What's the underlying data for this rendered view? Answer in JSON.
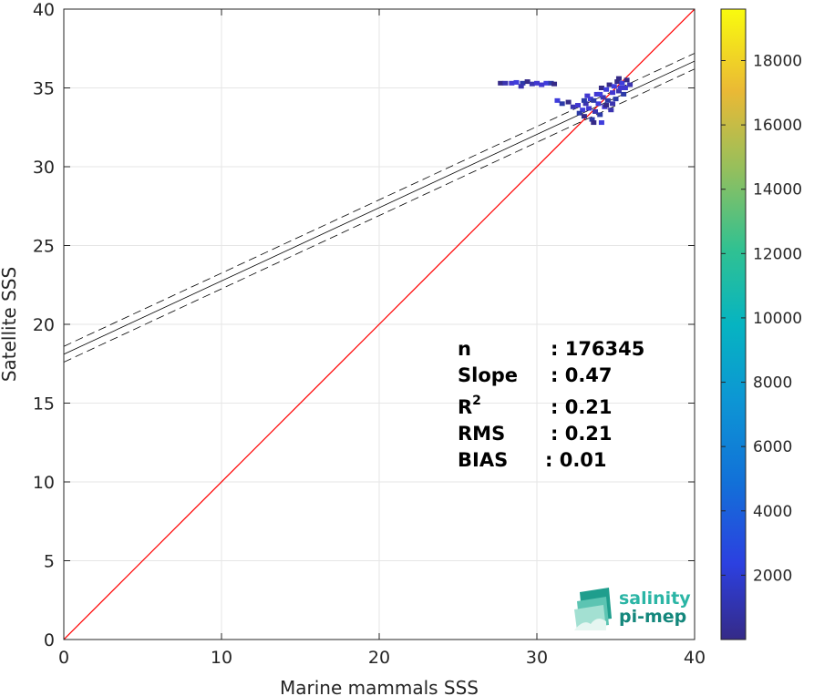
{
  "chart_data": {
    "type": "scatter",
    "subtype": "density-scatter",
    "xlabel": "Marine mammals SSS",
    "ylabel": "Satellite SSS",
    "xlim": [
      0,
      40
    ],
    "ylim": [
      0,
      40
    ],
    "xticks": [
      "0",
      "10",
      "20",
      "30",
      "40"
    ],
    "yticks": [
      "0",
      "5",
      "10",
      "15",
      "20",
      "25",
      "30",
      "35",
      "40"
    ],
    "grid": true,
    "colorbar": {
      "range": [
        0,
        19600
      ],
      "ticks": [
        "2000",
        "4000",
        "6000",
        "8000",
        "10000",
        "12000",
        "14000",
        "16000",
        "18000"
      ],
      "colormap": "parula"
    },
    "reference_line": {
      "name": "1:1",
      "x": [
        0,
        40
      ],
      "y": [
        0,
        40
      ],
      "color": "#ff0000"
    },
    "fit_line": {
      "intercept": 18.1,
      "slope": 0.465,
      "x": [
        0,
        40
      ],
      "color": "#000000"
    },
    "fit_bounds": {
      "offset": 0.5,
      "style": "dashed",
      "color": "#000000"
    },
    "density_points": [
      {
        "x": 27.7,
        "y": 35.3
      },
      {
        "x": 28.0,
        "y": 35.3
      },
      {
        "x": 28.4,
        "y": 35.3
      },
      {
        "x": 28.7,
        "y": 35.35
      },
      {
        "x": 29.1,
        "y": 35.3
      },
      {
        "x": 29.4,
        "y": 35.4
      },
      {
        "x": 29.7,
        "y": 35.25
      },
      {
        "x": 30.0,
        "y": 35.3
      },
      {
        "x": 30.6,
        "y": 35.3
      },
      {
        "x": 30.9,
        "y": 35.3
      },
      {
        "x": 31.1,
        "y": 35.25
      },
      {
        "x": 29.0,
        "y": 35.1
      },
      {
        "x": 30.3,
        "y": 35.2
      },
      {
        "x": 31.3,
        "y": 34.2
      },
      {
        "x": 31.6,
        "y": 34.0
      },
      {
        "x": 32.0,
        "y": 34.1
      },
      {
        "x": 32.3,
        "y": 33.8
      },
      {
        "x": 32.6,
        "y": 33.9
      },
      {
        "x": 32.9,
        "y": 33.6
      },
      {
        "x": 32.7,
        "y": 33.4
      },
      {
        "x": 33.0,
        "y": 33.2
      },
      {
        "x": 33.1,
        "y": 34.0
      },
      {
        "x": 33.3,
        "y": 33.7
      },
      {
        "x": 33.4,
        "y": 34.3
      },
      {
        "x": 33.5,
        "y": 33.0
      },
      {
        "x": 33.6,
        "y": 32.8
      },
      {
        "x": 33.7,
        "y": 33.5
      },
      {
        "x": 33.8,
        "y": 34.6
      },
      {
        "x": 33.9,
        "y": 34.0
      },
      {
        "x": 34.0,
        "y": 33.3
      },
      {
        "x": 34.1,
        "y": 35.0
      },
      {
        "x": 34.2,
        "y": 34.4
      },
      {
        "x": 34.3,
        "y": 33.8
      },
      {
        "x": 34.4,
        "y": 34.9
      },
      {
        "x": 34.5,
        "y": 34.2
      },
      {
        "x": 34.6,
        "y": 35.2
      },
      {
        "x": 34.7,
        "y": 33.6
      },
      {
        "x": 34.8,
        "y": 34.7
      },
      {
        "x": 34.9,
        "y": 35.1
      },
      {
        "x": 35.0,
        "y": 34.3
      },
      {
        "x": 35.1,
        "y": 35.4
      },
      {
        "x": 35.2,
        "y": 34.8
      },
      {
        "x": 35.3,
        "y": 35.0
      },
      {
        "x": 35.4,
        "y": 35.3
      },
      {
        "x": 35.5,
        "y": 34.6
      },
      {
        "x": 35.7,
        "y": 35.5
      },
      {
        "x": 35.9,
        "y": 35.2
      },
      {
        "x": 33.2,
        "y": 34.5
      },
      {
        "x": 34.0,
        "y": 34.6
      },
      {
        "x": 33.6,
        "y": 34.2
      },
      {
        "x": 34.4,
        "y": 33.9
      },
      {
        "x": 34.8,
        "y": 34.0
      },
      {
        "x": 35.6,
        "y": 35.0
      },
      {
        "x": 34.1,
        "y": 32.8
      },
      {
        "x": 33.0,
        "y": 34.2
      },
      {
        "x": 35.2,
        "y": 35.6
      }
    ],
    "annotations": [
      {
        "label": "n",
        "value": ": 176345"
      },
      {
        "label": "Slope",
        "value": ": 0.47"
      },
      {
        "label": "R",
        "sup": "2",
        "value": ": 0.21"
      },
      {
        "label": "RMS",
        "value": ": 0.21"
      },
      {
        "label": "BIAS",
        "value": ": 0.01"
      }
    ]
  },
  "logo": {
    "line1": "salinity",
    "line2": "pi-mep",
    "color1": "#2bb5a5",
    "color2": "#14877c"
  }
}
